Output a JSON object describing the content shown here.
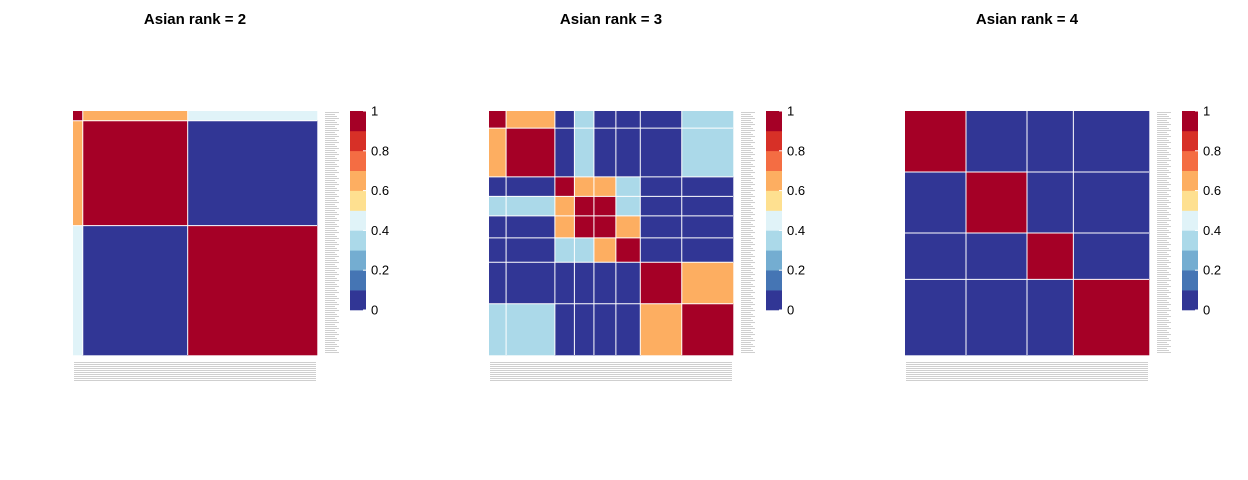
{
  "palette": [
    "#313695",
    "#4575b4",
    "#74add1",
    "#abd9e9",
    "#e0f3f8",
    "#fee090",
    "#fdae61",
    "#f46d43",
    "#d73027",
    "#a50026"
  ],
  "colorbar_ticks": [
    "0",
    "0.2",
    "0.4",
    "0.6",
    "0.8",
    "1"
  ],
  "chart_data": [
    {
      "type": "heatmap",
      "title": "Asian rank = 2",
      "value_range": [
        0,
        1
      ],
      "legend_position": "right",
      "row_labels_visible": "unreadable",
      "column_labels_visible": "unreadable",
      "block_fractions": [
        0.04,
        0.43,
        0.53
      ],
      "block_values": [
        [
          1.0,
          0.6,
          0.4
        ],
        [
          0.6,
          1.0,
          0.0
        ],
        [
          0.4,
          0.0,
          1.0
        ]
      ]
    },
    {
      "type": "heatmap",
      "title": "Asian rank = 3",
      "value_range": [
        0,
        1
      ],
      "legend_position": "right",
      "row_labels_visible": "unreadable",
      "column_labels_visible": "unreadable",
      "block_fractions": [
        0.07,
        0.2,
        0.08,
        0.08,
        0.09,
        0.1,
        0.17,
        0.21
      ],
      "block_values": [
        [
          1.0,
          0.6,
          0.0,
          0.3,
          0.0,
          0.0,
          0.0,
          0.3
        ],
        [
          0.6,
          1.0,
          0.0,
          0.3,
          0.0,
          0.0,
          0.0,
          0.3
        ],
        [
          0.0,
          0.0,
          1.0,
          0.6,
          0.6,
          0.3,
          0.0,
          0.0
        ],
        [
          0.3,
          0.3,
          0.6,
          1.0,
          0.9,
          0.3,
          0.0,
          0.0
        ],
        [
          0.0,
          0.0,
          0.6,
          0.9,
          1.0,
          0.6,
          0.0,
          0.0
        ],
        [
          0.0,
          0.0,
          0.3,
          0.3,
          0.6,
          1.0,
          0.0,
          0.0
        ],
        [
          0.0,
          0.0,
          0.0,
          0.0,
          0.0,
          0.0,
          1.0,
          0.6
        ],
        [
          0.3,
          0.3,
          0.0,
          0.0,
          0.0,
          0.0,
          0.6,
          1.0
        ]
      ]
    },
    {
      "type": "heatmap",
      "title": "Asian rank = 4",
      "value_range": [
        0,
        1
      ],
      "legend_position": "right",
      "row_labels_visible": "unreadable",
      "column_labels_visible": "unreadable",
      "block_fractions": [
        0.25,
        0.25,
        0.19,
        0.31
      ],
      "block_values": [
        [
          1.0,
          0.0,
          0.0,
          0.0
        ],
        [
          0.0,
          1.0,
          0.0,
          0.0
        ],
        [
          0.0,
          0.0,
          1.0,
          0.0
        ],
        [
          0.0,
          0.0,
          0.0,
          1.0
        ]
      ]
    }
  ]
}
